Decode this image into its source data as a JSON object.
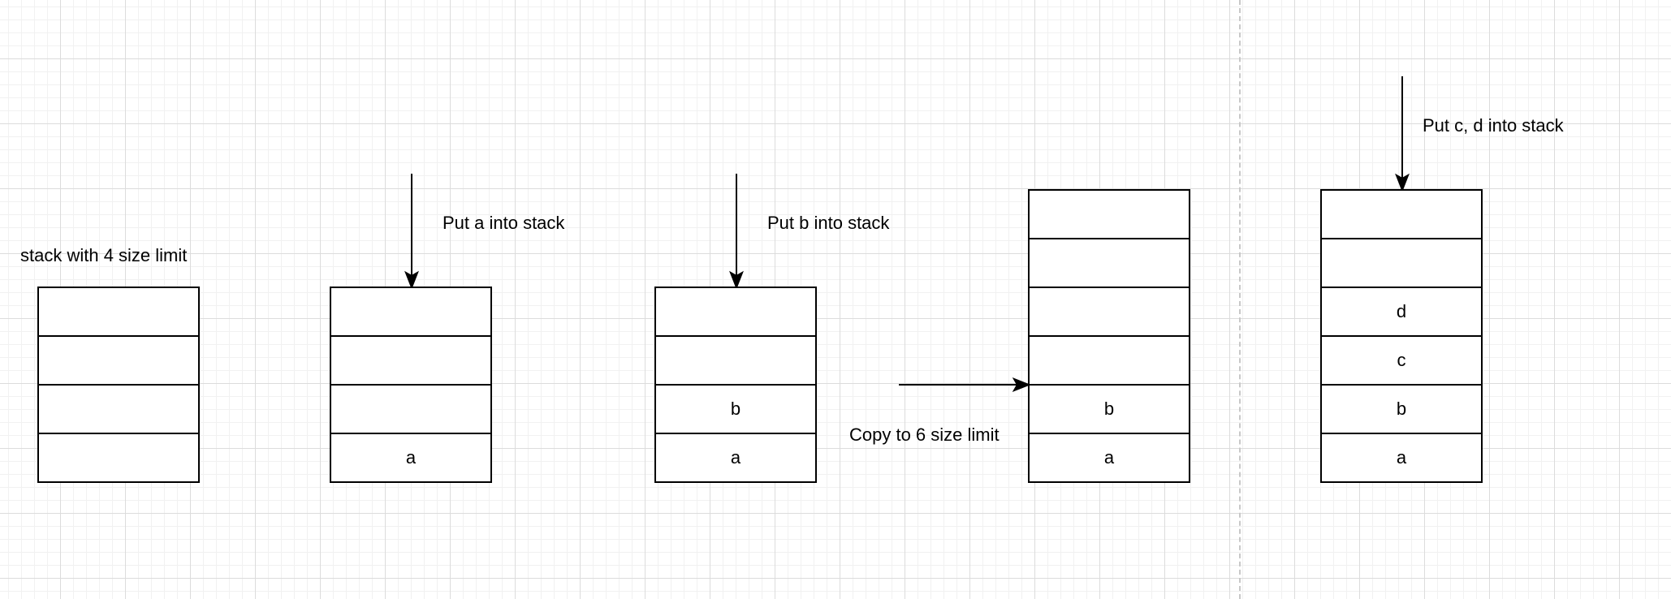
{
  "labels": {
    "stack_limit": "stack with 4 size limit",
    "put_a": "Put a into stack",
    "put_b": "Put b into stack",
    "copy": "Copy to 6 size limit",
    "put_cd": "Put c, d into stack"
  },
  "stacks": [
    {
      "cells": [
        "",
        "",
        "",
        ""
      ]
    },
    {
      "cells": [
        "",
        "",
        "",
        "a"
      ]
    },
    {
      "cells": [
        "",
        "",
        "b",
        "a"
      ]
    },
    {
      "cells": [
        "",
        "",
        "",
        "",
        "b",
        "a"
      ]
    },
    {
      "cells": [
        "",
        "",
        "d",
        "c",
        "b",
        "a"
      ]
    }
  ]
}
